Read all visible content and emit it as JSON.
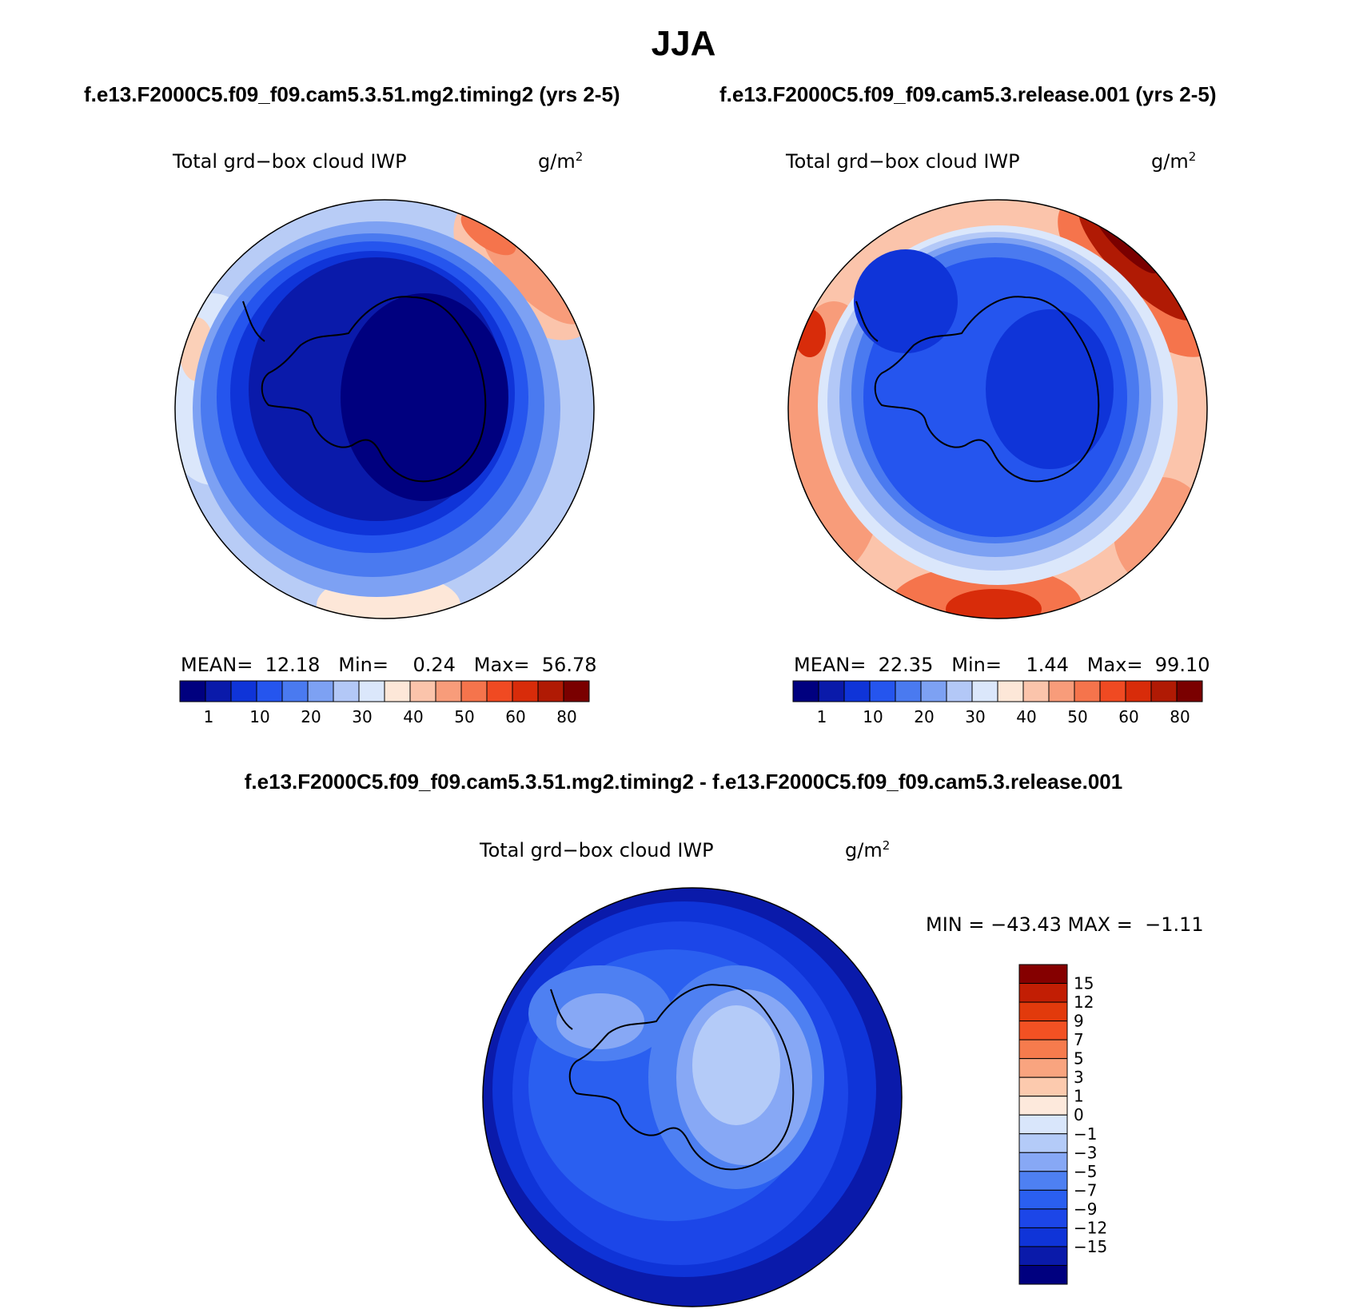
{
  "title": "JJA",
  "panels": [
    {
      "case_title": "f.e13.F2000C5.f09_f09.cam5.3.51.mg2.timing2 (yrs 2-5)",
      "var_title": "Total grd−box cloud IWP",
      "units": "g/m",
      "units_power": "2",
      "stats": {
        "mean_label": "MEAN=",
        "mean": "12.18",
        "min_label": "Min=",
        "min": "0.24",
        "max_label": "Max=",
        "max": "56.78"
      }
    },
    {
      "case_title": "f.e13.F2000C5.f09_f09.cam5.3.release.001 (yrs 2-5)",
      "var_title": "Total grd−box cloud IWP",
      "units": "g/m",
      "units_power": "2",
      "stats": {
        "mean_label": "MEAN=",
        "mean": "22.35",
        "min_label": "Min=",
        "min": "1.44",
        "max_label": "Max=",
        "max": "99.10"
      }
    }
  ],
  "diff": {
    "case_title": "f.e13.F2000C5.f09_f09.cam5.3.51.mg2.timing2 - f.e13.F2000C5.f09_f09.cam5.3.release.001",
    "var_title": "Total grd−box cloud IWP",
    "units": "g/m",
    "units_power": "2",
    "minmax": "MIN = −43.43 MAX =  −1.11"
  },
  "colorbar_top": {
    "colors": [
      "#00007f",
      "#0a1aaa",
      "#0f34d8",
      "#2555ee",
      "#4a7af0",
      "#7da1f3",
      "#b3c8f7",
      "#dbe7fb",
      "#fde7d8",
      "#fbc4ab",
      "#f89c7a",
      "#f5744c",
      "#f04a22",
      "#d82c0a",
      "#b01a04",
      "#7a0000"
    ],
    "labels": [
      "1",
      "10",
      "20",
      "30",
      "40",
      "50",
      "60",
      "80"
    ]
  },
  "colorbar_diff": {
    "colors": [
      "#00007f",
      "#0a1aaa",
      "#0f34d8",
      "#1c46e8",
      "#2a5ff0",
      "#4e80f2",
      "#87a8f5",
      "#b4cbf8",
      "#d9e6fb",
      "#fde9dc",
      "#fccaae",
      "#f9a47f",
      "#f67b4d",
      "#f25123",
      "#e23a0c",
      "#c21e04",
      "#850000"
    ],
    "labels": [
      "15",
      "12",
      "9",
      "7",
      "5",
      "3",
      "1",
      "0",
      "−1",
      "−3",
      "−5",
      "−7",
      "−9",
      "−12",
      "−15"
    ]
  },
  "chart_data": [
    {
      "type": "heatmap",
      "title": "Total grd−box cloud IWP",
      "units": "g/m2",
      "projection": "south polar stereographic",
      "mean": 12.18,
      "min": 0.24,
      "max": 56.78,
      "levels": [
        1,
        5,
        10,
        15,
        20,
        25,
        30,
        35,
        40,
        45,
        50,
        55,
        60,
        70,
        80
      ]
    },
    {
      "type": "heatmap",
      "title": "Total grd−box cloud IWP",
      "units": "g/m2",
      "projection": "south polar stereographic",
      "mean": 22.35,
      "min": 1.44,
      "max": 99.1,
      "levels": [
        1,
        5,
        10,
        15,
        20,
        25,
        30,
        35,
        40,
        45,
        50,
        55,
        60,
        70,
        80
      ]
    },
    {
      "type": "heatmap",
      "title": "Total grd−box cloud IWP",
      "units": "g/m2",
      "projection": "south polar stereographic",
      "min": -43.43,
      "max": -1.11,
      "levels": [
        -15,
        -12,
        -9,
        -7,
        -5,
        -3,
        -1,
        0,
        1,
        3,
        5,
        7,
        9,
        12,
        15
      ]
    }
  ]
}
